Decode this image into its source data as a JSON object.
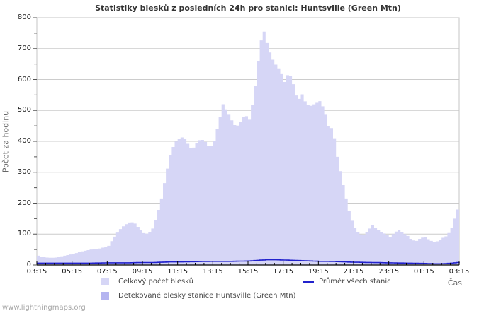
{
  "watermark": "www.lightningmaps.org",
  "chart_data": {
    "type": "area",
    "title": "Statistiky blesků z posledních 24h pro stanici: Huntsville (Green Mtn)",
    "xlabel": "Čas",
    "ylabel": "Počet za hodinu",
    "ylim": [
      0,
      800
    ],
    "x_range_hours": [
      0,
      24
    ],
    "grid": true,
    "legend_position": "bottom",
    "y_ticks": [
      0,
      100,
      200,
      300,
      400,
      500,
      600,
      700,
      800
    ],
    "x_tick_labels": [
      "03:15",
      "05:15",
      "07:15",
      "09:15",
      "11:15",
      "13:15",
      "15:15",
      "17:15",
      "19:15",
      "21:15",
      "23:15",
      "01:15",
      "03:15"
    ],
    "colors": {
      "grid": "#cccccc",
      "plot_border": "#c4c4c4",
      "axis": "#000000",
      "total_fill": "#d6d6f6",
      "detected_fill": "#b4b4f0",
      "average_line": "#2222cc"
    },
    "series": [
      {
        "name": "Celkový počet blesků",
        "type": "area",
        "color": "#d6d6f6",
        "points": [
          [
            0,
            30
          ],
          [
            0.25,
            26
          ],
          [
            0.5,
            24
          ],
          [
            0.75,
            23
          ],
          [
            1,
            24
          ],
          [
            1.5,
            30
          ],
          [
            2,
            36
          ],
          [
            2.5,
            44
          ],
          [
            3,
            50
          ],
          [
            3.5,
            53
          ],
          [
            4,
            62
          ],
          [
            4.25,
            85
          ],
          [
            4.5,
            105
          ],
          [
            4.75,
            122
          ],
          [
            5,
            132
          ],
          [
            5.25,
            140
          ],
          [
            5.5,
            134
          ],
          [
            5.75,
            118
          ],
          [
            6,
            103
          ],
          [
            6.25,
            100
          ],
          [
            6.5,
            118
          ],
          [
            6.75,
            160
          ],
          [
            7,
            215
          ],
          [
            7.25,
            290
          ],
          [
            7.5,
            355
          ],
          [
            7.75,
            395
          ],
          [
            8,
            408
          ],
          [
            8.25,
            415
          ],
          [
            8.5,
            392
          ],
          [
            8.75,
            372
          ],
          [
            9,
            395
          ],
          [
            9.25,
            408
          ],
          [
            9.5,
            398
          ],
          [
            9.75,
            378
          ],
          [
            10,
            400
          ],
          [
            10.25,
            460
          ],
          [
            10.5,
            520
          ],
          [
            10.75,
            495
          ],
          [
            11,
            468
          ],
          [
            11.25,
            445
          ],
          [
            11.5,
            462
          ],
          [
            11.75,
            487
          ],
          [
            12,
            470
          ],
          [
            12.25,
            540
          ],
          [
            12.5,
            660
          ],
          [
            12.7,
            740
          ],
          [
            12.8,
            762
          ],
          [
            13,
            718
          ],
          [
            13.25,
            672
          ],
          [
            13.5,
            648
          ],
          [
            13.75,
            630
          ],
          [
            14,
            592
          ],
          [
            14.25,
            625
          ],
          [
            14.5,
            585
          ],
          [
            14.75,
            530
          ],
          [
            15,
            552
          ],
          [
            15.25,
            518
          ],
          [
            15.5,
            515
          ],
          [
            15.75,
            522
          ],
          [
            16,
            530
          ],
          [
            16.25,
            505
          ],
          [
            16.5,
            448
          ],
          [
            16.75,
            440
          ],
          [
            17,
            350
          ],
          [
            17.25,
            280
          ],
          [
            17.5,
            215
          ],
          [
            17.75,
            155
          ],
          [
            18,
            119
          ],
          [
            18.25,
            100
          ],
          [
            18.5,
            96
          ],
          [
            18.75,
            112
          ],
          [
            19,
            130
          ],
          [
            19.25,
            115
          ],
          [
            19.5,
            106
          ],
          [
            19.75,
            100
          ],
          [
            20,
            90
          ],
          [
            20.25,
            105
          ],
          [
            20.5,
            114
          ],
          [
            20.75,
            103
          ],
          [
            21,
            94
          ],
          [
            21.25,
            80
          ],
          [
            21.5,
            78
          ],
          [
            21.75,
            88
          ],
          [
            22,
            90
          ],
          [
            22.25,
            80
          ],
          [
            22.5,
            74
          ],
          [
            22.75,
            78
          ],
          [
            23,
            88
          ],
          [
            23.25,
            95
          ],
          [
            23.5,
            120
          ],
          [
            23.75,
            165
          ],
          [
            24,
            208
          ]
        ]
      },
      {
        "name": "Detekované blesky stanice Huntsville (Green Mtn)",
        "type": "area",
        "color": "#b4b4f0",
        "points": [
          [
            0,
            0
          ],
          [
            24,
            0
          ]
        ]
      },
      {
        "name": "Průměr všech stanic",
        "type": "line",
        "color": "#2222cc",
        "points": [
          [
            0,
            6
          ],
          [
            1,
            6
          ],
          [
            2,
            6
          ],
          [
            3,
            6
          ],
          [
            4,
            7
          ],
          [
            5,
            7
          ],
          [
            6,
            8
          ],
          [
            6.5,
            8
          ],
          [
            7,
            9
          ],
          [
            7.5,
            10
          ],
          [
            8,
            10
          ],
          [
            9,
            11
          ],
          [
            10,
            12
          ],
          [
            11,
            12
          ],
          [
            12,
            13
          ],
          [
            12.5,
            15
          ],
          [
            13,
            17
          ],
          [
            13.5,
            17
          ],
          [
            14,
            16
          ],
          [
            14.5,
            15
          ],
          [
            15,
            14
          ],
          [
            15.5,
            13
          ],
          [
            16,
            12
          ],
          [
            16.5,
            12
          ],
          [
            17,
            11
          ],
          [
            17.5,
            10
          ],
          [
            18,
            9
          ],
          [
            19,
            8
          ],
          [
            20,
            7
          ],
          [
            21,
            6
          ],
          [
            22,
            5
          ],
          [
            22.5,
            4
          ],
          [
            23,
            4
          ],
          [
            23.5,
            6
          ],
          [
            24,
            9
          ]
        ]
      }
    ]
  }
}
